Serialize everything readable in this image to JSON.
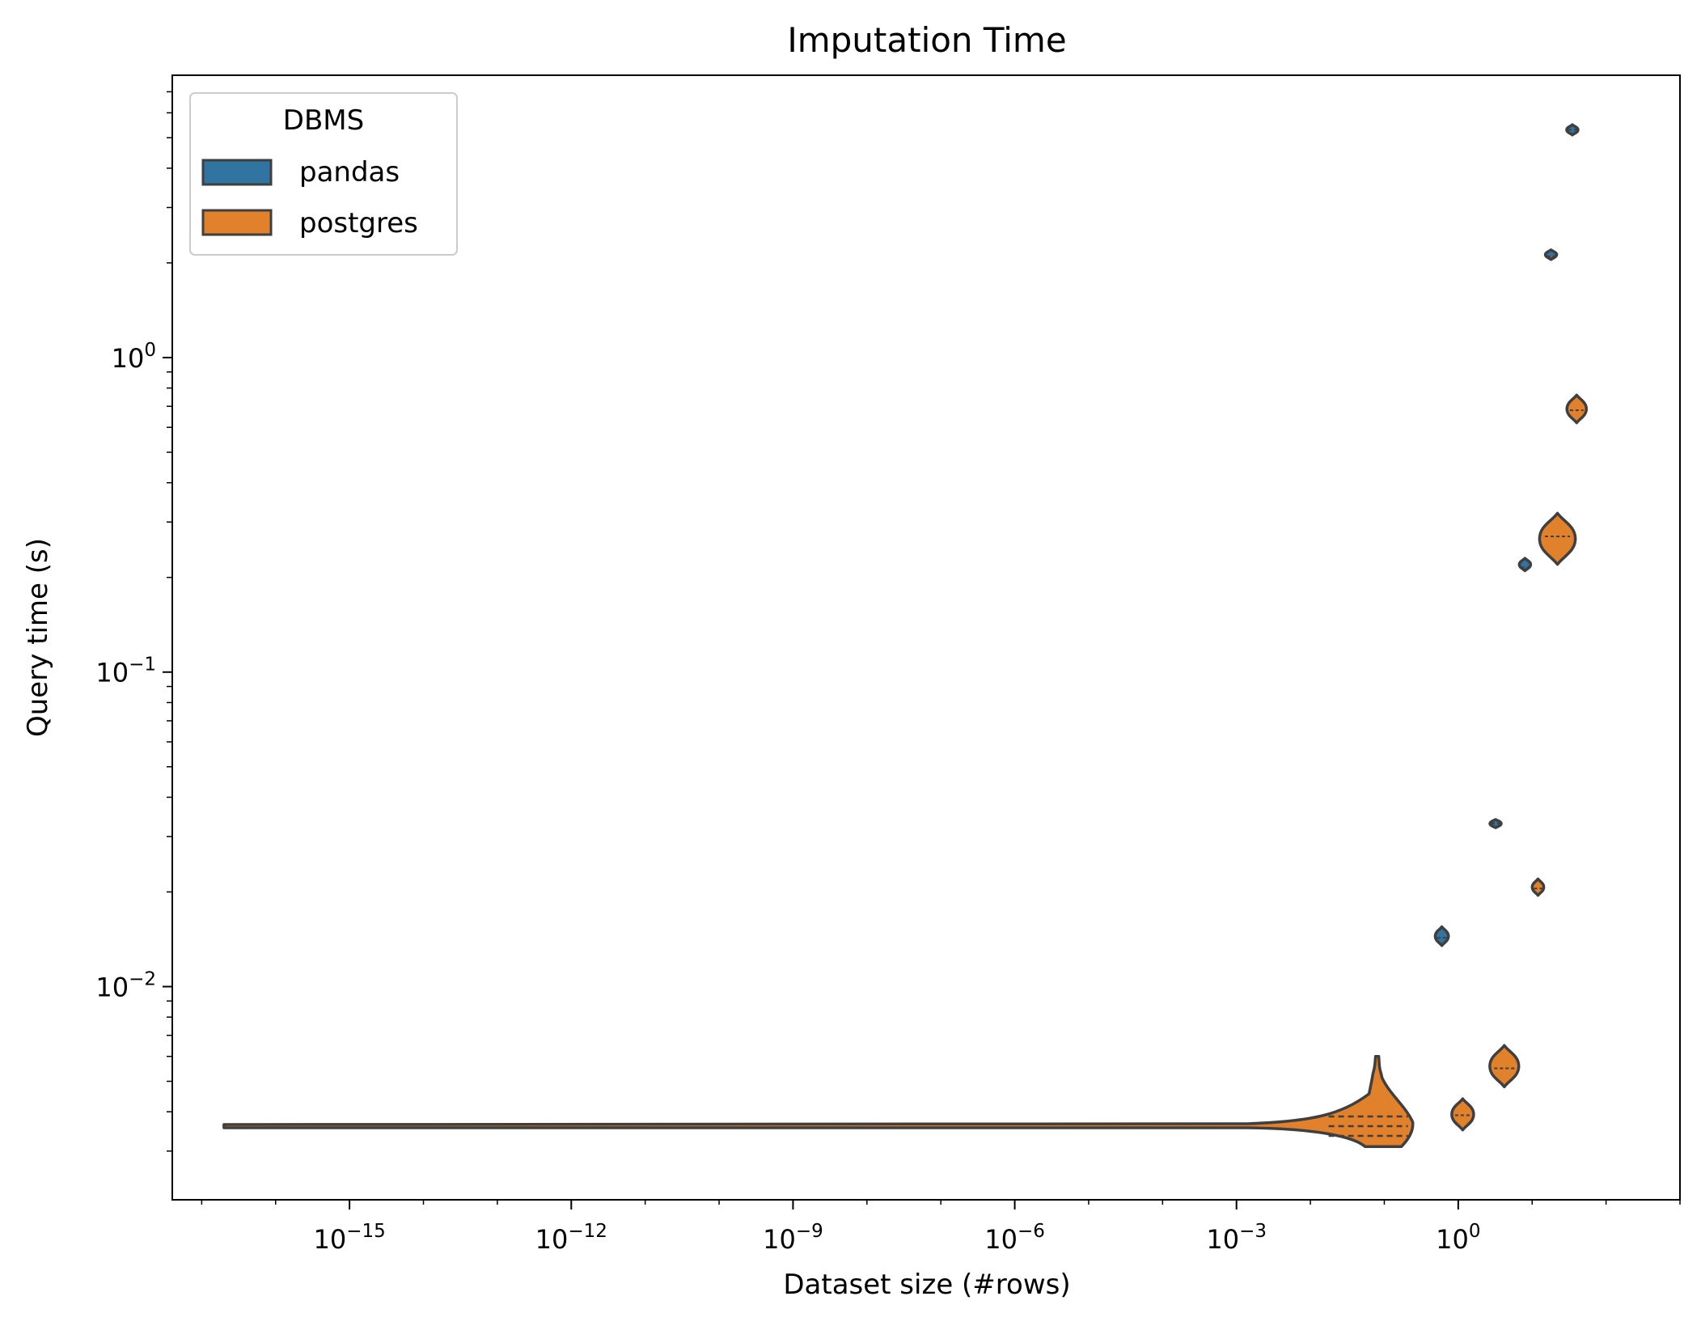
{
  "chart_data": {
    "type": "violin",
    "title": "Imputation Time",
    "xlabel": "Dataset size (#rows)",
    "ylabel": "Query time (s)",
    "x_scale": "log",
    "y_scale": "log",
    "xlim": [
      4e-18,
      1000
    ],
    "ylim": [
      0.0021,
      7.9
    ],
    "x_ticks": [
      {
        "value": 1e-15,
        "base": "10",
        "exp": "−15"
      },
      {
        "value": 1e-12,
        "base": "10",
        "exp": "−12"
      },
      {
        "value": 1e-09,
        "base": "10",
        "exp": "−9"
      },
      {
        "value": 1e-06,
        "base": "10",
        "exp": "−6"
      },
      {
        "value": 0.001,
        "base": "10",
        "exp": "−3"
      },
      {
        "value": 1,
        "base": "10",
        "exp": "0"
      }
    ],
    "y_ticks": [
      {
        "value": 0.01,
        "base": "10",
        "exp": "−2"
      },
      {
        "value": 0.1,
        "base": "10",
        "exp": "−1"
      },
      {
        "value": 1,
        "base": "10",
        "exp": "0"
      }
    ],
    "legend": {
      "title": "DBMS",
      "location": "upper left",
      "entries": [
        {
          "name": "pandas",
          "color": "#3274a1"
        },
        {
          "name": "postgres",
          "color": "#e1812c"
        }
      ]
    },
    "series": [
      {
        "name": "pandas",
        "color": "#3274a1",
        "violins": [
          {
            "x": 0.6,
            "y_min": 0.0135,
            "y_max": 0.0155,
            "y_median": 0.0143
          },
          {
            "x": 3.2,
            "y_min": 0.032,
            "y_max": 0.034,
            "y_median": 0.033
          },
          {
            "x": 8,
            "y_min": 0.21,
            "y_max": 0.23,
            "y_median": 0.215
          },
          {
            "x": 18,
            "y_min": 2.05,
            "y_max": 2.2,
            "y_median": 2.1
          },
          {
            "x": 35,
            "y_min": 5.1,
            "y_max": 5.5,
            "y_median": 5.3
          }
        ]
      },
      {
        "name": "postgres",
        "color": "#e1812c",
        "violins": [
          {
            "x": 0.08,
            "y_min": 0.0031,
            "y_max": 0.006,
            "y_median": 0.0036,
            "tail_x_min": 2e-17,
            "tail_y": 0.0036
          },
          {
            "x": 1.15,
            "y_min": 0.0035,
            "y_max": 0.0044,
            "y_median": 0.0039
          },
          {
            "x": 4.2,
            "y_min": 0.0048,
            "y_max": 0.0065,
            "y_median": 0.0055
          },
          {
            "x": 12,
            "y_min": 0.0195,
            "y_max": 0.022,
            "y_median": 0.0205
          },
          {
            "x": 22,
            "y_min": 0.22,
            "y_max": 0.32,
            "y_median": 0.27
          },
          {
            "x": 40,
            "y_min": 0.62,
            "y_max": 0.76,
            "y_median": 0.68
          }
        ]
      }
    ]
  }
}
